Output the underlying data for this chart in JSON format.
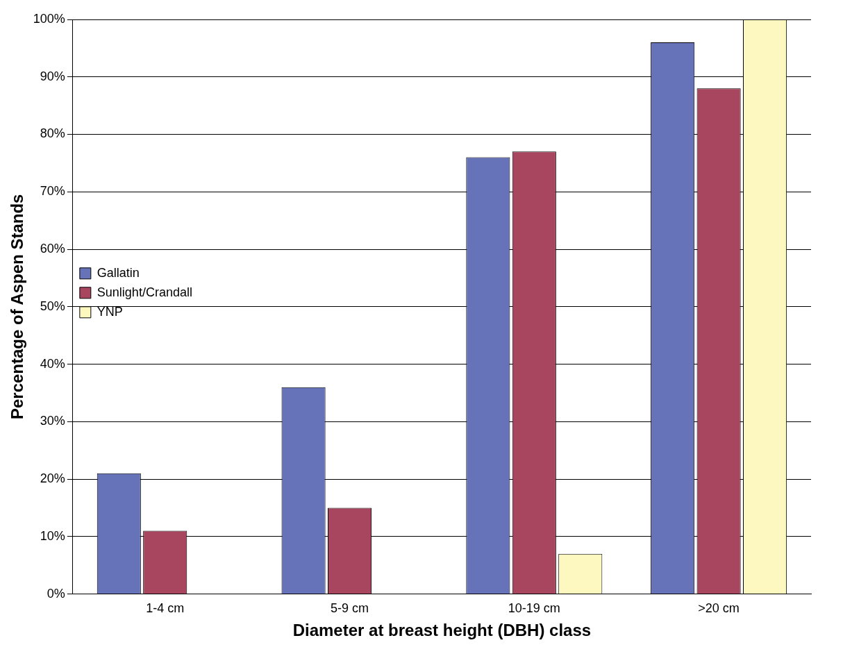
{
  "chart_data": {
    "type": "bar",
    "xlabel": "Diameter at breast height (DBH) class",
    "ylabel": "Percentage of Aspen Stands",
    "categories": [
      "1-4 cm",
      "5-9 cm",
      "10-19 cm",
      ">20 cm"
    ],
    "series": [
      {
        "name": "Gallatin",
        "color": "#6673b8",
        "values": [
          21,
          36,
          76,
          96
        ]
      },
      {
        "name": "Sunlight/Crandall",
        "color": "#a8455f",
        "values": [
          11,
          15,
          77,
          88
        ]
      },
      {
        "name": "YNP",
        "color": "#fdf7c0",
        "values": [
          0,
          0,
          7,
          100
        ]
      }
    ],
    "ylim": [
      0,
      100
    ],
    "yticks": [
      {
        "value": 0,
        "label": "0%"
      },
      {
        "value": 10,
        "label": "10%"
      },
      {
        "value": 20,
        "label": "20%"
      },
      {
        "value": 30,
        "label": "30%"
      },
      {
        "value": 40,
        "label": "40%"
      },
      {
        "value": 50,
        "label": "50%"
      },
      {
        "value": 60,
        "label": "60%"
      },
      {
        "value": 70,
        "label": "70%"
      },
      {
        "value": 80,
        "label": "80%"
      },
      {
        "value": 90,
        "label": "90%"
      },
      {
        "value": 100,
        "label": "100%"
      }
    ],
    "grid": "y",
    "legend": "left"
  }
}
